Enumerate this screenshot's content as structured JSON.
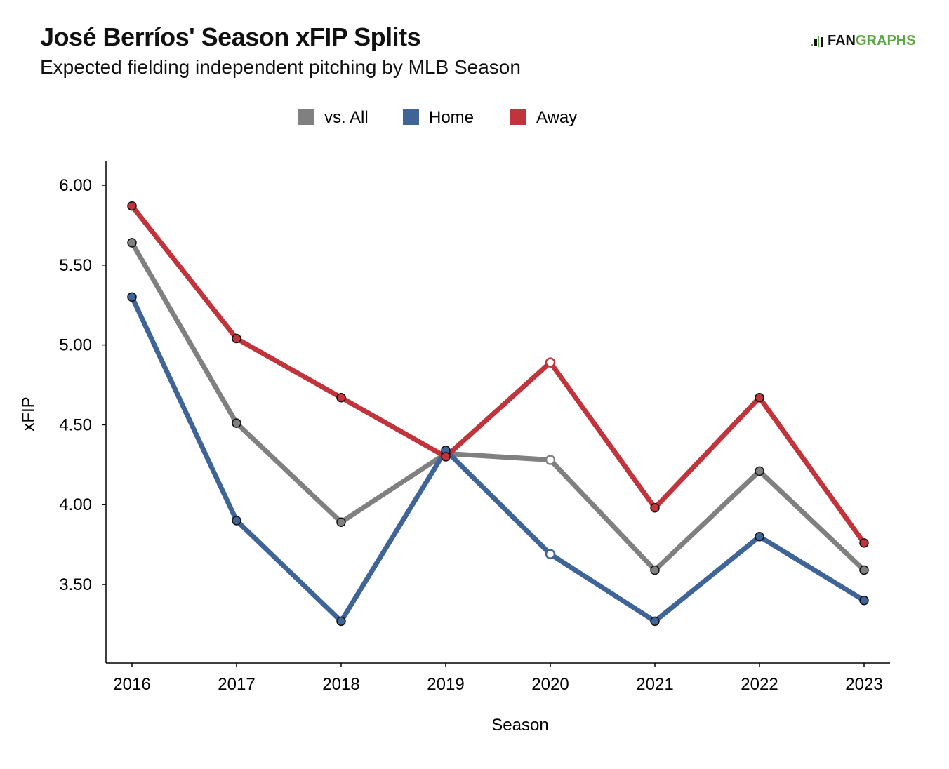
{
  "header": {
    "title": "José Berríos' Season xFIP Splits",
    "subtitle": "Expected fielding independent pitching by MLB Season",
    "brand_left": "FAN",
    "brand_right": "GRAPHS",
    "brand_icon": "fangraphs-logo-icon",
    "brand_color": "#5ea843"
  },
  "chart_data": {
    "type": "line",
    "x": [
      "2016",
      "2017",
      "2018",
      "2019",
      "2020",
      "2021",
      "2022",
      "2023"
    ],
    "xlabel": "Season",
    "ylabel": "xFIP",
    "ylim": [
      3.0,
      6.15
    ],
    "yticks": [
      "3.50",
      "4.00",
      "4.50",
      "5.00",
      "5.50",
      "6.00"
    ],
    "grid": false,
    "legend_position": "top-center",
    "hollow_marker_x": "2020",
    "series": [
      {
        "name": "vs. All",
        "color": "#808080",
        "values": [
          5.64,
          4.51,
          3.89,
          4.32,
          4.28,
          3.59,
          4.21,
          3.59
        ]
      },
      {
        "name": "Home",
        "color": "#3f6598",
        "values": [
          5.3,
          3.9,
          3.27,
          4.34,
          3.69,
          3.27,
          3.8,
          3.4
        ]
      },
      {
        "name": "Away",
        "color": "#c1343b",
        "values": [
          5.87,
          5.04,
          4.67,
          4.3,
          4.89,
          3.98,
          4.67,
          3.76
        ]
      }
    ]
  }
}
